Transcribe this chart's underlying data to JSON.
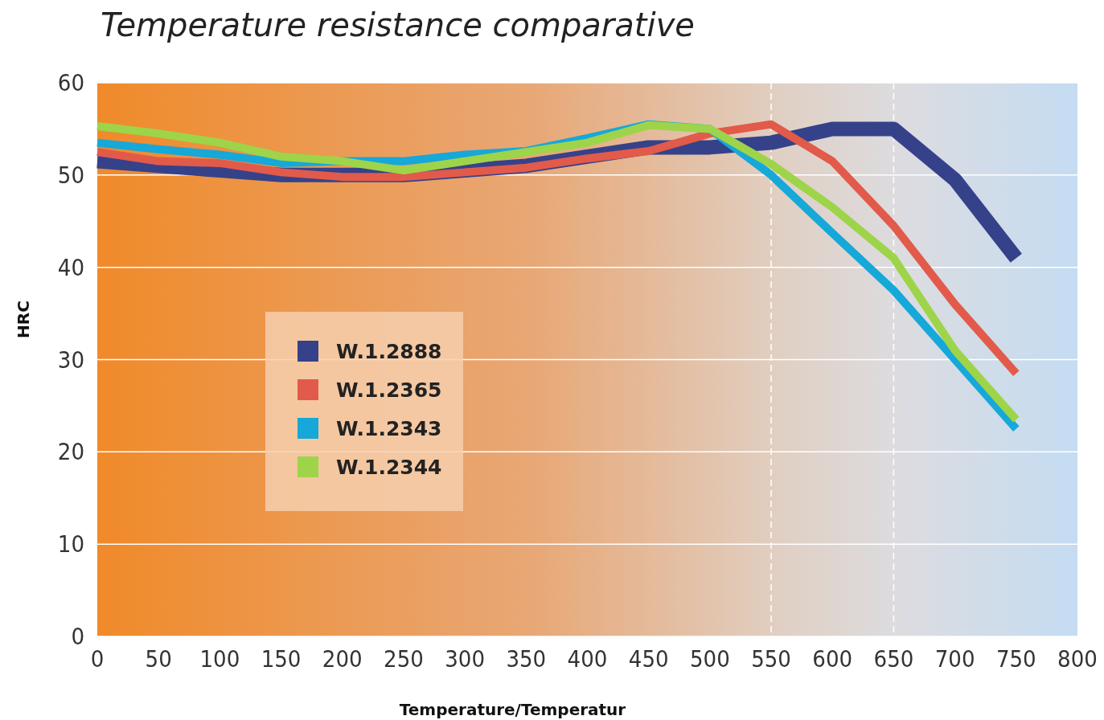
{
  "chart_data": {
    "type": "line",
    "title": "Temperature resistance comparative",
    "xlabel": "Temperature/Temperatur",
    "ylabel": "HRC",
    "x": [
      0,
      50,
      100,
      150,
      200,
      250,
      300,
      350,
      400,
      450,
      500,
      550,
      600,
      650,
      700,
      750
    ],
    "series": [
      {
        "name": "W.1.2888",
        "color": "#35428a",
        "values": [
          51.5,
          51,
          50.5,
          50,
          50,
          50,
          50.5,
          51,
          52,
          53,
          53,
          53.5,
          55,
          55,
          49.5,
          41
        ]
      },
      {
        "name": "W.1.2365",
        "color": "#e25a4a",
        "values": [
          52.5,
          51.5,
          51.3,
          50.3,
          49.8,
          49.8,
          50.3,
          50.8,
          51.8,
          52.6,
          54.5,
          55.5,
          51.5,
          44.5,
          36,
          28.5
        ]
      },
      {
        "name": "W.1.2343",
        "color": "#16a8d8",
        "values": [
          53.5,
          52.8,
          52.2,
          51.3,
          51.5,
          51.5,
          52.2,
          52.6,
          54,
          55.5,
          55,
          50,
          43.7,
          37.5,
          30,
          22.5
        ]
      },
      {
        "name": "W.1.2344",
        "color": "#9ed44a",
        "values": [
          55.3,
          54.5,
          53.5,
          52,
          51.5,
          50.5,
          51.5,
          52.5,
          53.5,
          55.4,
          55,
          51.2,
          46.5,
          41,
          31,
          23.5
        ]
      }
    ],
    "xlim": [
      0,
      800
    ],
    "xticks": [
      0,
      50,
      100,
      150,
      200,
      250,
      300,
      350,
      400,
      450,
      500,
      550,
      600,
      650,
      700,
      750,
      800
    ],
    "ylim": [
      0,
      60
    ],
    "yticks": [
      0,
      10,
      20,
      30,
      40,
      50,
      60
    ],
    "ref_lines": [
      {
        "axis": "x",
        "value": 550,
        "color": "#ffffff",
        "line_style": "dashed"
      },
      {
        "axis": "x",
        "value": 650,
        "color": "#ffffff",
        "line_style": "dashed"
      }
    ],
    "grid": "y",
    "legend": "left",
    "line_style": "solid"
  }
}
